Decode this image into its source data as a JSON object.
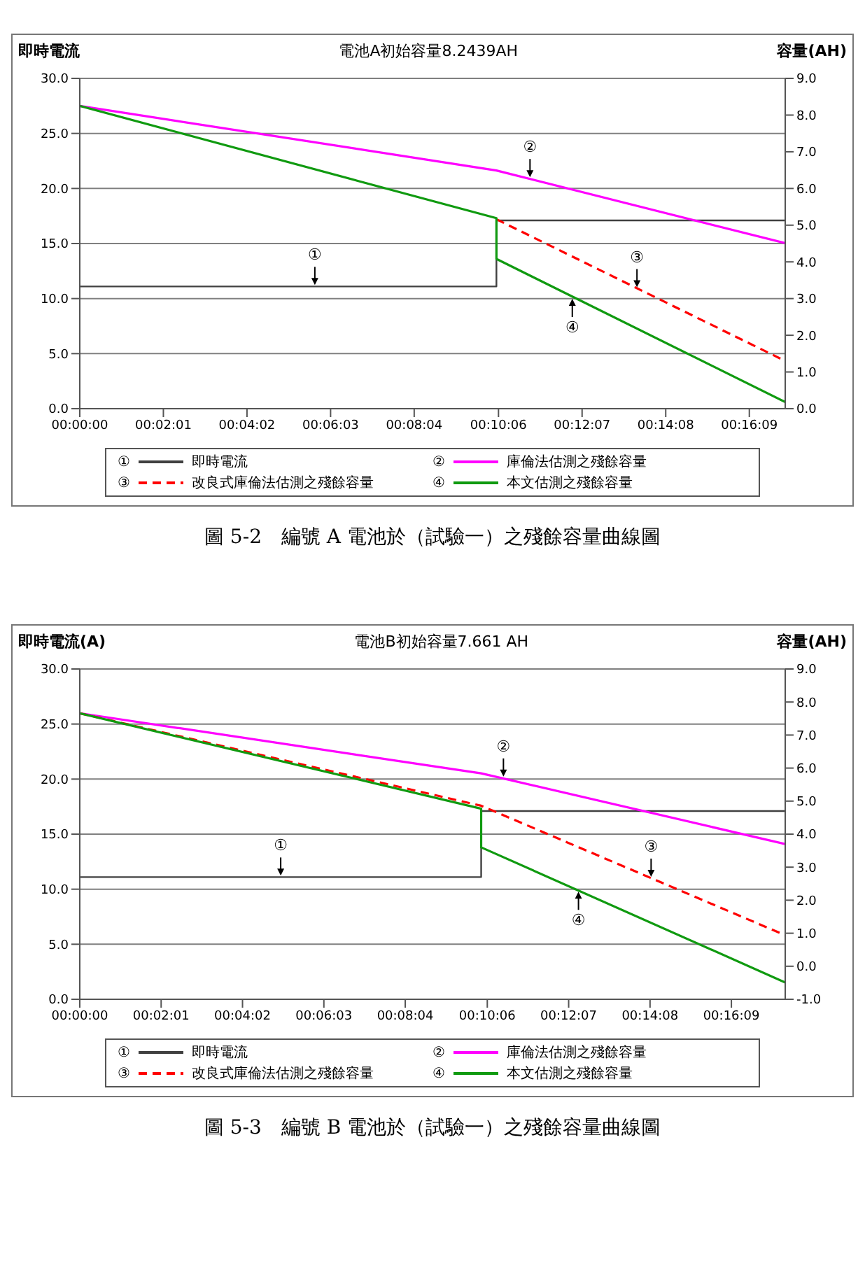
{
  "chart_data": [
    {
      "type": "line",
      "title": "電池A初始容量8.2439AH",
      "ylabel": "即時電流",
      "y2label": "容量(AH)",
      "grid": "y",
      "legend": "bottom",
      "marker": "none",
      "xlim": [
        0,
        0.2836
      ],
      "xticks": [
        {
          "value": 0,
          "label": "00:00:00"
        },
        {
          "value": 0.03361,
          "label": "00:02:01"
        },
        {
          "value": 0.06722,
          "label": "00:04:02"
        },
        {
          "value": 0.10083,
          "label": "00:06:03"
        },
        {
          "value": 0.13444,
          "label": "00:08:04"
        },
        {
          "value": 0.16833,
          "label": "00:10:06"
        },
        {
          "value": 0.20194,
          "label": "00:12:07"
        },
        {
          "value": 0.23556,
          "label": "00:14:08"
        },
        {
          "value": 0.26917,
          "label": "00:16:09"
        }
      ],
      "ylim": [
        0,
        30
      ],
      "yticks": [
        {
          "value": 0,
          "label": "0.0"
        },
        {
          "value": 5,
          "label": "5.0"
        },
        {
          "value": 10,
          "label": "10.0"
        },
        {
          "value": 15,
          "label": "15.0"
        },
        {
          "value": 20,
          "label": "20.0"
        },
        {
          "value": 25,
          "label": "25.0"
        },
        {
          "value": 30,
          "label": "30.0"
        }
      ],
      "y2lim": [
        0,
        9
      ],
      "y2ticks": [
        {
          "value": 0,
          "label": "0.0"
        },
        {
          "value": 1,
          "label": "1.0"
        },
        {
          "value": 2,
          "label": "2.0"
        },
        {
          "value": 3,
          "label": "3.0"
        },
        {
          "value": 4,
          "label": "4.0"
        },
        {
          "value": 5,
          "label": "5.0"
        },
        {
          "value": 6,
          "label": "6.0"
        },
        {
          "value": 7,
          "label": "7.0"
        },
        {
          "value": 8,
          "label": "8.0"
        },
        {
          "value": 9,
          "label": "9.0"
        }
      ],
      "series": [
        {
          "name": "即時電流",
          "color": "#404040",
          "x": [
            0,
            0.1675,
            0.1675,
            0.2836
          ],
          "values": [
            11.1,
            11.1,
            17.1,
            17.1
          ]
        },
        {
          "name": "庫倫法估測之殘餘容量",
          "color": "#ff00ff",
          "axis": "y2",
          "x": [
            0,
            0.1675,
            0.2836
          ],
          "values": [
            8.25,
            6.49,
            4.51
          ]
        },
        {
          "name": "改良式庫倫法估測之殘餘容量",
          "color": "#ff0000",
          "axis": "y2",
          "line_style": "dashed",
          "x": [
            0.1675,
            0.2836
          ],
          "values": [
            5.16,
            1.3
          ]
        },
        {
          "name": "本文估測之殘餘容量",
          "color": "#109a10",
          "axis": "y2",
          "x": [
            0,
            0.1675,
            0.1675,
            0.2836
          ],
          "values": [
            8.25,
            5.19,
            4.08,
            0.18
          ]
        }
      ],
      "annotations": [
        {
          "text": "①",
          "x": 0.0945,
          "y": 11.1
        },
        {
          "text": "②",
          "x": 0.181,
          "y": 20.9
        },
        {
          "text": "③",
          "x": 0.224,
          "y": 10.9
        },
        {
          "text": "④",
          "x": 0.198,
          "y": 10.1
        },
        "圖 5-2　編號 A 電池於（試驗一）之殘餘容量曲線圖"
      ]
    },
    {
      "type": "line",
      "title": "電池B初始容量7.661 AH",
      "ylabel": "即時電流(A)",
      "y2label": "容量(AH)",
      "grid": "y",
      "legend": "bottom",
      "marker": "none",
      "xlim": [
        0,
        0.2914
      ],
      "xticks": [
        {
          "value": 0,
          "label": "00:00:00"
        },
        {
          "value": 0.03361,
          "label": "00:02:01"
        },
        {
          "value": 0.06722,
          "label": "00:04:02"
        },
        {
          "value": 0.10083,
          "label": "00:06:03"
        },
        {
          "value": 0.13444,
          "label": "00:08:04"
        },
        {
          "value": 0.16833,
          "label": "00:10:06"
        },
        {
          "value": 0.20194,
          "label": "00:12:07"
        },
        {
          "value": 0.23556,
          "label": "00:14:08"
        },
        {
          "value": 0.26917,
          "label": "00:16:09"
        }
      ],
      "ylim": [
        0,
        30
      ],
      "yticks": [
        {
          "value": 0,
          "label": "0.0"
        },
        {
          "value": 5,
          "label": "5.0"
        },
        {
          "value": 10,
          "label": "10.0"
        },
        {
          "value": 15,
          "label": "15.0"
        },
        {
          "value": 20,
          "label": "20.0"
        },
        {
          "value": 25,
          "label": "25.0"
        },
        {
          "value": 30,
          "label": "30.0"
        }
      ],
      "y2lim": [
        -1,
        9
      ],
      "y2ticks": [
        {
          "value": -1,
          "label": "-1.0"
        },
        {
          "value": 0,
          "label": "0.0"
        },
        {
          "value": 1,
          "label": "1.0"
        },
        {
          "value": 2,
          "label": "2.0"
        },
        {
          "value": 3,
          "label": "3.0"
        },
        {
          "value": 4,
          "label": "4.0"
        },
        {
          "value": 5,
          "label": "5.0"
        },
        {
          "value": 6,
          "label": "6.0"
        },
        {
          "value": 7,
          "label": "7.0"
        },
        {
          "value": 8,
          "label": "8.0"
        },
        {
          "value": 9,
          "label": "9.0"
        }
      ],
      "series": [
        {
          "name": "即時電流",
          "color": "#404040",
          "x": [
            0,
            0.1658,
            0.1658,
            0.2914
          ],
          "values": [
            11.1,
            11.1,
            17.1,
            17.1
          ]
        },
        {
          "name": "庫倫法估測之殘餘容量",
          "color": "#ff00ff",
          "axis": "y2",
          "x": [
            0,
            0.1658,
            0.2914
          ],
          "values": [
            7.66,
            5.84,
            3.7
          ]
        },
        {
          "name": "改良式庫倫法估測之殘餘容量",
          "color": "#ff0000",
          "axis": "y2",
          "line_style": "dashed",
          "x": [
            0,
            0.1658,
            0.2914
          ],
          "values": [
            7.66,
            4.86,
            0.94
          ]
        },
        {
          "name": "本文估測之殘餘容量",
          "color": "#109a10",
          "axis": "y2",
          "x": [
            0,
            0.1658,
            0.1658,
            0.2914
          ],
          "values": [
            7.66,
            4.77,
            3.6,
            -0.49
          ]
        }
      ],
      "annotations": [
        {
          "text": "①",
          "x": 0.083,
          "y": 11.1
        },
        {
          "text": "②",
          "x": 0.175,
          "y": 20.1
        },
        {
          "text": "③",
          "x": 0.236,
          "y": 11.0
        },
        {
          "text": "④",
          "x": 0.206,
          "y": 9.9
        },
        "圖 5-3　編號 B 電池於（試驗一）之殘餘容量曲線圖"
      ]
    }
  ]
}
